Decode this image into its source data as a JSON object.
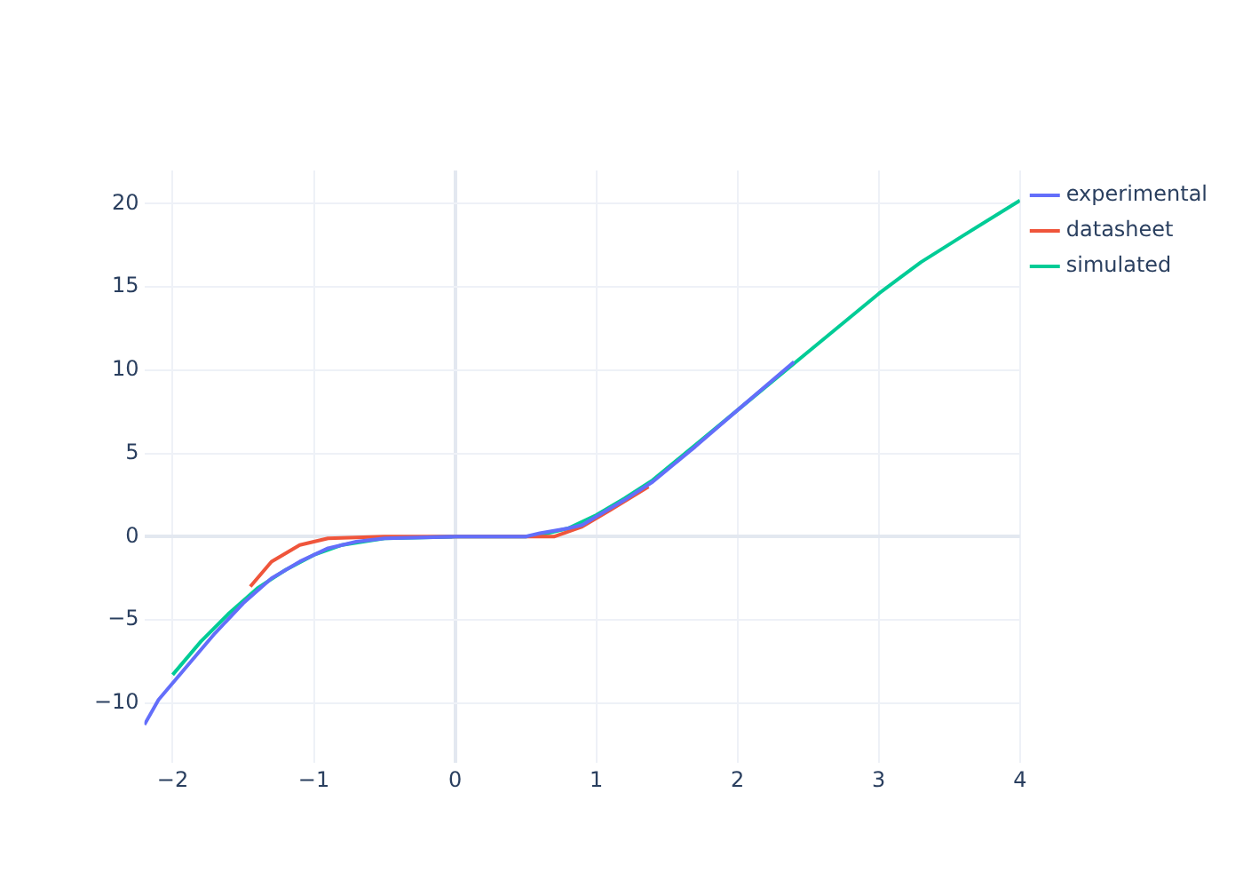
{
  "chart_data": {
    "type": "line",
    "xlim": [
      -2.2,
      4
    ],
    "ylim": [
      -13.6,
      22
    ],
    "xticks": [
      -2,
      -1,
      0,
      1,
      2,
      3,
      4
    ],
    "yticks": [
      -10,
      -5,
      0,
      5,
      10,
      15,
      20
    ],
    "grid": true,
    "legend": "top right",
    "marker": "none",
    "line_style": "solid",
    "series": [
      {
        "name": "experimental",
        "color": "#636efa",
        "x": [
          -2.2,
          -2.1,
          -1.9,
          -1.7,
          -1.5,
          -1.3,
          -1.1,
          -0.9,
          -0.7,
          -0.5,
          0,
          0.5,
          0.6,
          0.8,
          0.9,
          1,
          1.2,
          1.4,
          1.7,
          2,
          2.4
        ],
        "values": [
          -11.3,
          -9.8,
          -7.8,
          -5.8,
          -4,
          -2.5,
          -1.5,
          -0.7,
          -0.3,
          -0.1,
          0,
          0,
          0.2,
          0.5,
          0.7,
          1.2,
          2.2,
          3.3,
          5.4,
          7.6,
          10.5
        ]
      },
      {
        "name": "datasheet",
        "color": "#ef553b",
        "x": [
          -1.45,
          -1.3,
          -1.1,
          -0.9,
          -0.5,
          0,
          0.5,
          0.7,
          0.9,
          1.1,
          1.37
        ],
        "values": [
          -3,
          -1.5,
          -0.5,
          -0.1,
          0,
          0,
          0,
          0,
          0.6,
          1.6,
          3
        ]
      },
      {
        "name": "simulated",
        "color": "#00cc96",
        "x": [
          -2,
          -1.8,
          -1.6,
          -1.4,
          -1.2,
          -1,
          -0.8,
          -0.5,
          0,
          0.5,
          0.6,
          0.8,
          1,
          1.2,
          1.4,
          1.7,
          2,
          2.5,
          3,
          3.3,
          3.6,
          4
        ],
        "values": [
          -8.3,
          -6.3,
          -4.6,
          -3.1,
          -2,
          -1.1,
          -0.5,
          -0.1,
          0,
          0,
          0.1,
          0.5,
          1.3,
          2.3,
          3.4,
          5.5,
          7.6,
          11.1,
          14.6,
          16.5,
          18.1,
          20.2
        ]
      }
    ]
  }
}
